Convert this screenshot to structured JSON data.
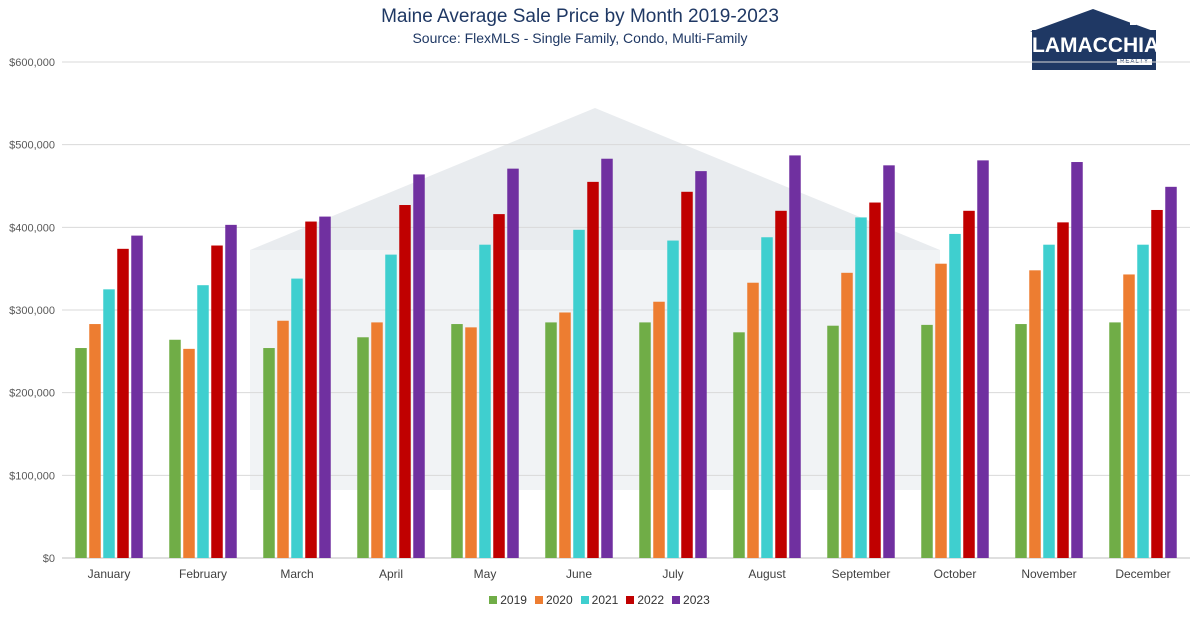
{
  "chart_data": {
    "type": "bar",
    "title": "Maine Average Sale Price by Month 2019-2023",
    "subtitle": "Source: FlexMLS - Single Family, Condo, Multi-Family",
    "categories": [
      "January",
      "February",
      "March",
      "April",
      "May",
      "June",
      "July",
      "August",
      "September",
      "October",
      "November",
      "December"
    ],
    "series": [
      {
        "name": "2019",
        "color": "#70ad47",
        "values": [
          254000,
          264000,
          254000,
          267000,
          283000,
          285000,
          285000,
          273000,
          281000,
          282000,
          283000,
          285000
        ]
      },
      {
        "name": "2020",
        "color": "#ed7d31",
        "values": [
          283000,
          253000,
          287000,
          285000,
          279000,
          297000,
          310000,
          333000,
          345000,
          356000,
          348000,
          343000
        ]
      },
      {
        "name": "2021",
        "color": "#3fcfcf",
        "values": [
          325000,
          330000,
          338000,
          367000,
          379000,
          397000,
          384000,
          388000,
          412000,
          392000,
          379000,
          379000
        ]
      },
      {
        "name": "2022",
        "color": "#c00000",
        "values": [
          374000,
          378000,
          407000,
          427000,
          416000,
          455000,
          443000,
          420000,
          430000,
          420000,
          406000,
          421000
        ]
      },
      {
        "name": "2023",
        "color": "#7030a0",
        "values": [
          390000,
          403000,
          413000,
          464000,
          471000,
          483000,
          468000,
          487000,
          475000,
          481000,
          479000,
          449000
        ]
      }
    ],
    "ylim": [
      0,
      600000
    ],
    "yticks": [
      "$0",
      "$100,000",
      "$200,000",
      "$300,000",
      "$400,000",
      "$500,000",
      "$600,000"
    ],
    "grid": true,
    "legend_position": "bottom"
  },
  "logo": {
    "text": "LAMACCHIA",
    "subtext": "REALTY"
  }
}
